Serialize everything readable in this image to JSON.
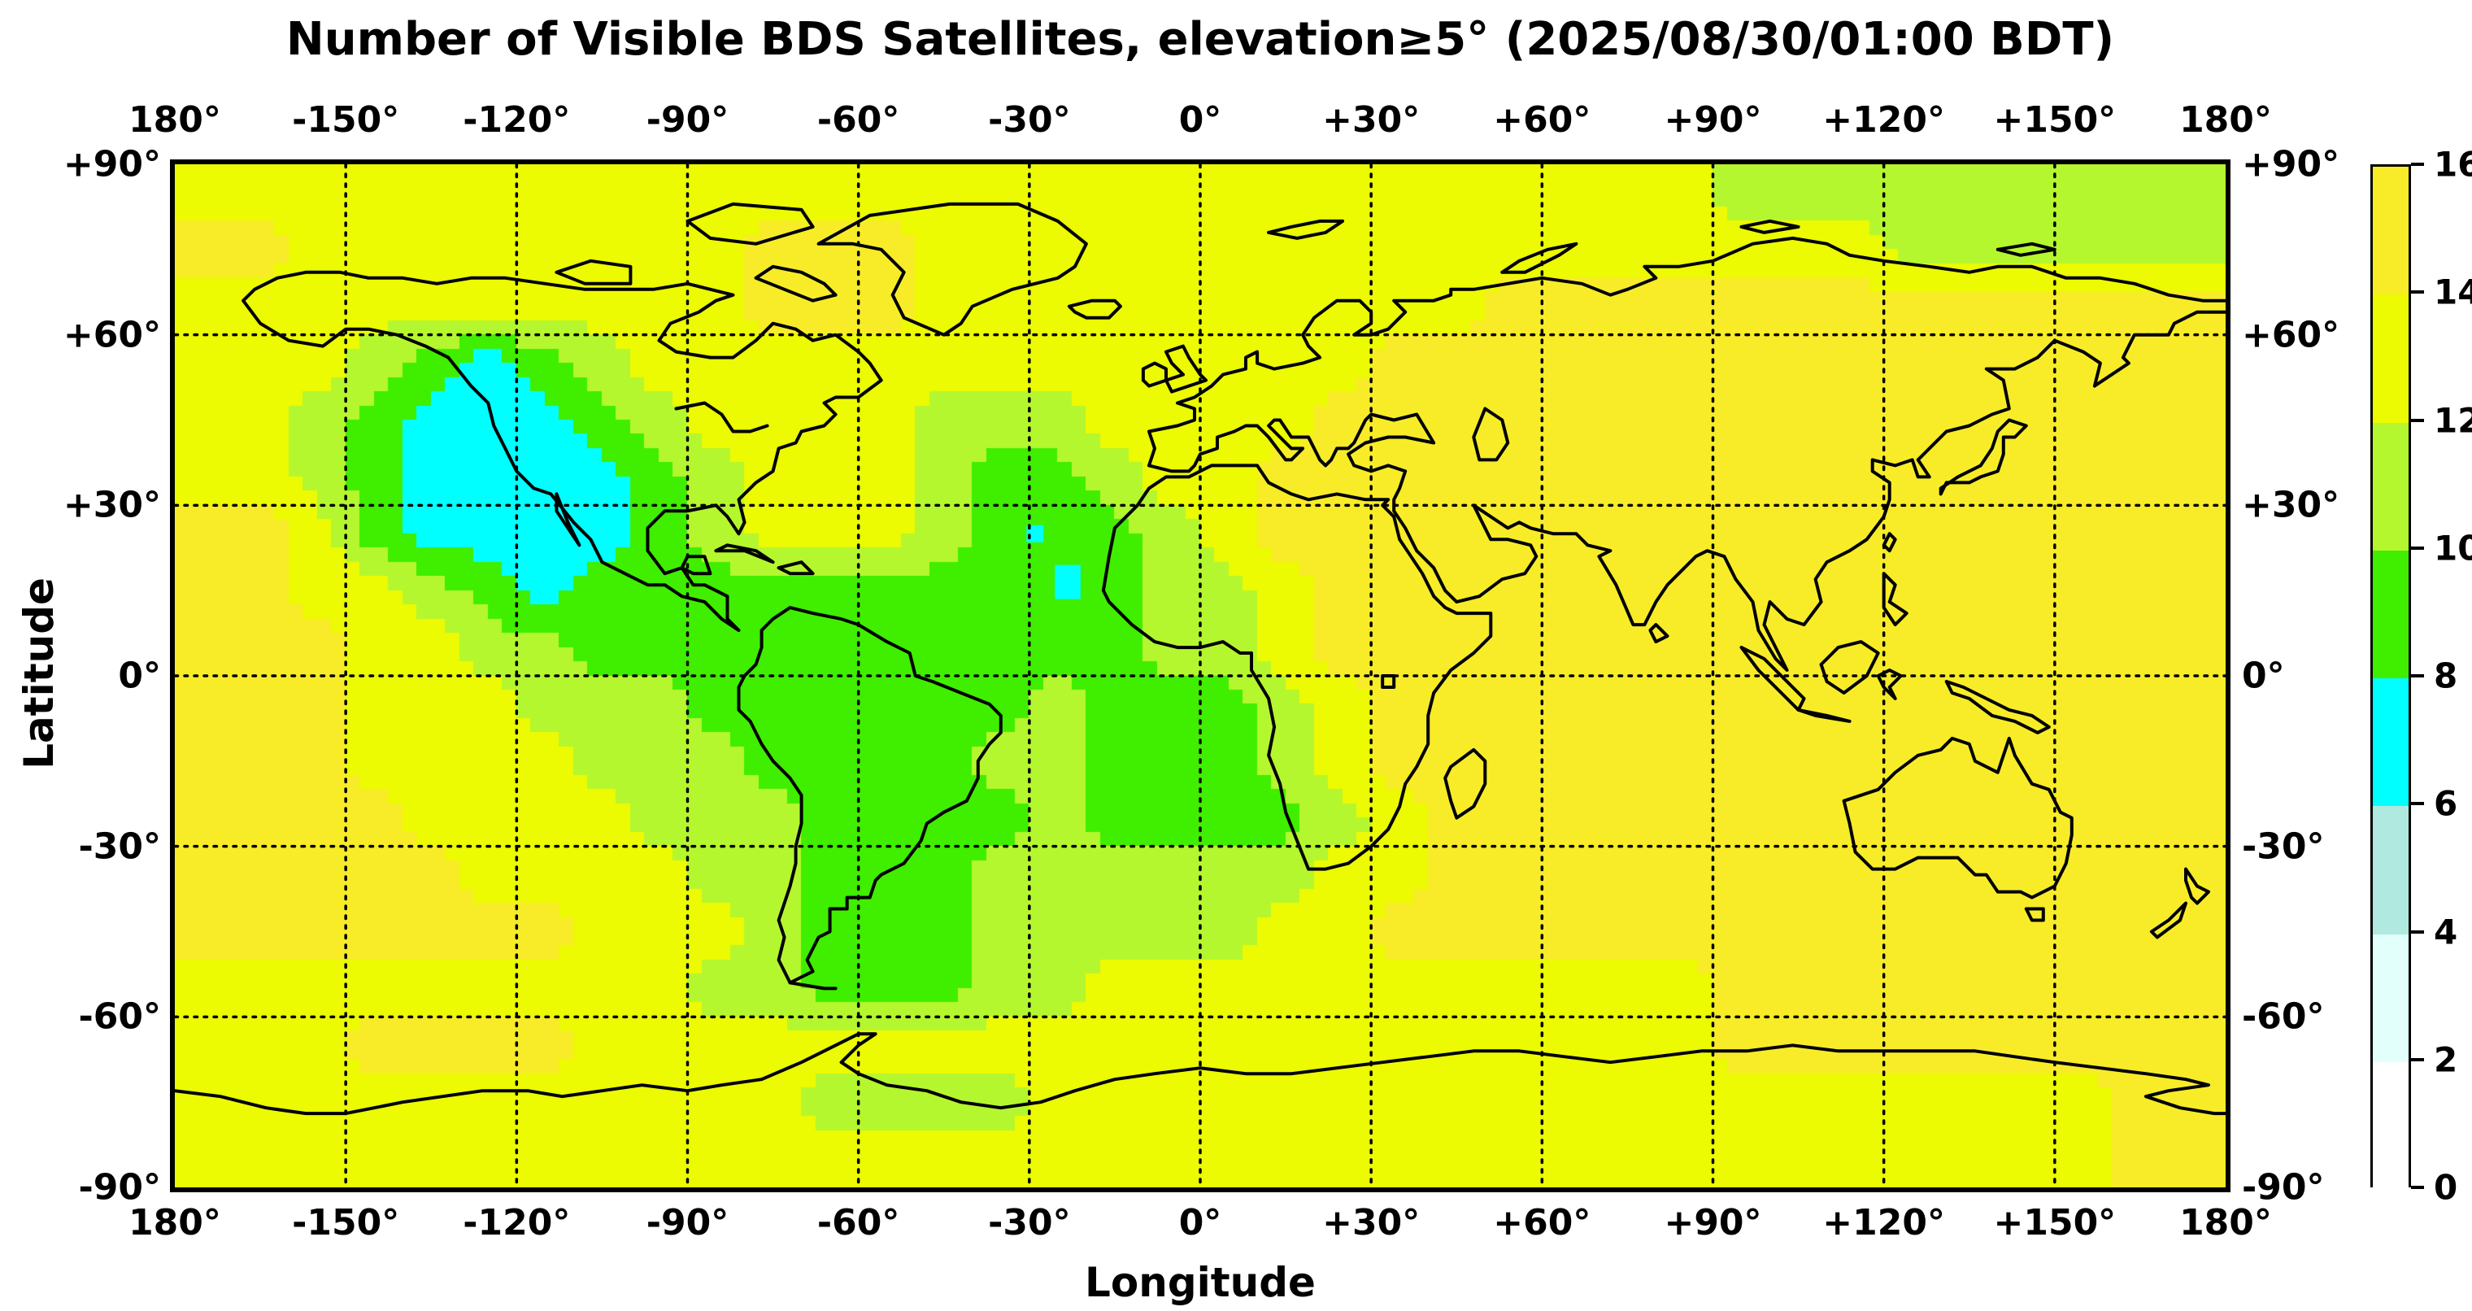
{
  "title": "Number of Visible BDS Satellites, elevation≥5° (2025/08/30/01:00 BDT)",
  "axes": {
    "xlabel": "Longitude",
    "ylabel": "Latitude",
    "x_tick_labels": [
      "180°",
      "-150°",
      "-120°",
      "-90°",
      "-60°",
      "-30°",
      "0°",
      "+30°",
      "+60°",
      "+90°",
      "+120°",
      "+150°",
      "180°"
    ],
    "y_tick_labels": [
      "+90°",
      "+60°",
      "+30°",
      "0°",
      "-30°",
      "-60°",
      "-90°"
    ],
    "x_range_deg": [
      -180,
      180
    ],
    "y_range_deg": [
      -90,
      90
    ],
    "grid": "dotted, every 30 degrees"
  },
  "colorbar": {
    "tick_labels_top_to_bottom": [
      "16",
      "14",
      "12",
      "10",
      "8",
      "6",
      "4",
      "2",
      "0"
    ],
    "levels": [
      0,
      2,
      4,
      6,
      8,
      10,
      12,
      14,
      16
    ],
    "colors_low_to_high": [
      "#ffffff",
      "#e2fffb",
      "#afe9e0",
      "#00ffff",
      "#40ee00",
      "#b4f72e",
      "#ecfa02",
      "#f8ec28"
    ]
  },
  "chart_data": {
    "type": "heatmap",
    "title": "Number of Visible BDS Satellites, elevation≥5° (2025/08/30/01:00 BDT)",
    "xlabel": "Longitude",
    "ylabel": "Latitude",
    "units": "visible satellites",
    "grid_step_deg": 10,
    "lon_centers": [
      -175,
      -165,
      -155,
      -145,
      -135,
      -125,
      -115,
      -105,
      -95,
      -85,
      -75,
      -65,
      -55,
      -45,
      -35,
      -25,
      -15,
      -5,
      5,
      15,
      25,
      35,
      45,
      55,
      65,
      75,
      85,
      95,
      105,
      115,
      125,
      135,
      145,
      155,
      165,
      175
    ],
    "lat_centers": [
      85,
      75,
      65,
      55,
      45,
      35,
      25,
      15,
      5,
      -5,
      -15,
      -25,
      -35,
      -45,
      -55,
      -65,
      -75,
      -85
    ],
    "values_rows_north_to_south": [
      [
        13,
        13,
        13,
        13,
        13,
        13,
        13,
        13,
        13,
        13,
        13,
        13,
        13,
        13,
        13,
        13,
        13,
        13,
        13,
        13,
        13,
        13,
        13,
        13,
        13,
        13,
        13,
        11,
        11,
        11,
        11,
        11,
        11,
        11,
        11,
        11
      ],
      [
        15,
        15,
        13,
        13,
        13,
        13,
        13,
        13,
        13,
        13,
        15,
        15,
        15,
        13,
        13,
        13,
        13,
        13,
        13,
        13,
        13,
        13,
        13,
        13,
        13,
        13,
        13,
        13,
        13,
        13,
        11,
        11,
        11,
        11,
        11,
        11
      ],
      [
        13,
        13,
        13,
        13,
        13,
        13,
        13,
        13,
        13,
        13,
        15,
        15,
        15,
        13,
        13,
        13,
        13,
        13,
        13,
        13,
        13,
        13,
        13,
        15,
        15,
        15,
        15,
        15,
        15,
        15,
        15,
        15,
        15,
        15,
        15,
        15
      ],
      [
        13,
        13,
        13,
        11,
        9,
        7,
        9,
        11,
        13,
        13,
        13,
        13,
        13,
        13,
        13,
        13,
        13,
        13,
        13,
        13,
        13,
        15,
        15,
        15,
        15,
        15,
        15,
        15,
        15,
        15,
        15,
        15,
        15,
        15,
        15,
        15
      ],
      [
        13,
        13,
        11,
        9,
        7,
        7,
        7,
        9,
        11,
        13,
        13,
        13,
        13,
        11,
        11,
        11,
        13,
        13,
        13,
        13,
        15,
        15,
        15,
        15,
        15,
        15,
        15,
        15,
        15,
        15,
        15,
        15,
        15,
        15,
        15,
        15
      ],
      [
        13,
        13,
        11,
        9,
        7,
        7,
        7,
        7,
        9,
        11,
        13,
        13,
        13,
        11,
        9,
        9,
        11,
        13,
        13,
        15,
        15,
        15,
        15,
        15,
        15,
        15,
        15,
        15,
        15,
        15,
        15,
        15,
        15,
        15,
        15,
        15
      ],
      [
        15,
        15,
        13,
        9,
        7,
        7,
        7,
        7,
        9,
        11,
        13,
        13,
        13,
        11,
        9,
        9,
        9,
        11,
        13,
        15,
        15,
        15,
        15,
        15,
        15,
        15,
        15,
        15,
        15,
        15,
        15,
        15,
        15,
        15,
        15,
        15
      ],
      [
        15,
        15,
        13,
        13,
        11,
        9,
        7,
        9,
        9,
        9,
        9,
        9,
        9,
        9,
        9,
        9,
        9,
        11,
        11,
        13,
        15,
        15,
        15,
        15,
        15,
        15,
        15,
        15,
        15,
        15,
        15,
        15,
        15,
        15,
        15,
        15
      ],
      [
        15,
        15,
        15,
        13,
        13,
        11,
        11,
        9,
        9,
        9,
        9,
        9,
        9,
        9,
        9,
        9,
        9,
        11,
        11,
        13,
        15,
        15,
        15,
        15,
        15,
        15,
        15,
        15,
        15,
        15,
        15,
        15,
        15,
        15,
        15,
        15
      ],
      [
        15,
        15,
        15,
        13,
        13,
        13,
        11,
        11,
        11,
        9,
        9,
        9,
        9,
        9,
        9,
        11,
        9,
        9,
        9,
        11,
        13,
        15,
        15,
        15,
        15,
        15,
        15,
        15,
        15,
        15,
        15,
        15,
        15,
        15,
        15,
        15
      ],
      [
        15,
        15,
        15,
        13,
        13,
        13,
        13,
        11,
        11,
        11,
        9,
        9,
        9,
        9,
        11,
        11,
        9,
        9,
        9,
        11,
        13,
        15,
        15,
        15,
        15,
        15,
        15,
        15,
        15,
        15,
        15,
        15,
        15,
        15,
        15,
        15
      ],
      [
        15,
        15,
        15,
        15,
        13,
        13,
        13,
        13,
        11,
        11,
        11,
        9,
        9,
        9,
        9,
        11,
        9,
        9,
        9,
        9,
        11,
        13,
        15,
        15,
        15,
        15,
        15,
        15,
        15,
        15,
        15,
        15,
        15,
        15,
        15,
        15
      ],
      [
        15,
        15,
        15,
        15,
        15,
        13,
        13,
        13,
        13,
        11,
        11,
        9,
        9,
        9,
        11,
        11,
        11,
        11,
        11,
        11,
        13,
        13,
        15,
        15,
        15,
        15,
        15,
        15,
        15,
        15,
        15,
        15,
        15,
        15,
        15,
        15
      ],
      [
        15,
        15,
        15,
        15,
        15,
        15,
        15,
        13,
        13,
        13,
        11,
        9,
        9,
        9,
        11,
        11,
        11,
        11,
        11,
        13,
        13,
        15,
        15,
        15,
        15,
        15,
        15,
        15,
        15,
        15,
        15,
        15,
        15,
        15,
        15,
        15
      ],
      [
        13,
        13,
        13,
        13,
        13,
        13,
        13,
        13,
        13,
        11,
        11,
        9,
        9,
        9,
        11,
        11,
        13,
        13,
        13,
        13,
        13,
        13,
        13,
        13,
        13,
        13,
        13,
        15,
        15,
        15,
        15,
        15,
        15,
        15,
        15,
        15
      ],
      [
        13,
        13,
        13,
        15,
        15,
        15,
        15,
        13,
        13,
        13,
        13,
        13,
        13,
        13,
        13,
        13,
        13,
        13,
        13,
        13,
        13,
        13,
        13,
        13,
        13,
        13,
        13,
        15,
        15,
        15,
        15,
        15,
        15,
        15,
        15,
        15
      ],
      [
        13,
        13,
        13,
        13,
        13,
        13,
        13,
        13,
        13,
        13,
        13,
        11,
        11,
        11,
        11,
        13,
        13,
        13,
        13,
        13,
        13,
        13,
        13,
        13,
        13,
        13,
        13,
        13,
        13,
        13,
        13,
        13,
        13,
        13,
        15,
        15
      ],
      [
        13,
        13,
        13,
        13,
        13,
        13,
        13,
        13,
        13,
        13,
        13,
        13,
        13,
        13,
        13,
        13,
        13,
        13,
        13,
        13,
        13,
        13,
        13,
        13,
        13,
        13,
        13,
        13,
        13,
        13,
        13,
        13,
        13,
        13,
        15,
        15
      ]
    ],
    "low_visibility_spots": [
      {
        "lon_min": -30.5,
        "lon_max": -27.5,
        "lat_min": 23.5,
        "lat_max": 26.5,
        "value": 7
      },
      {
        "lon_min": -25.5,
        "lon_max": -21.0,
        "lat_min": 13.5,
        "lat_max": 19.5,
        "value": 7
      }
    ],
    "value_range": [
      0,
      16
    ],
    "legend_position": "right colorbar"
  }
}
